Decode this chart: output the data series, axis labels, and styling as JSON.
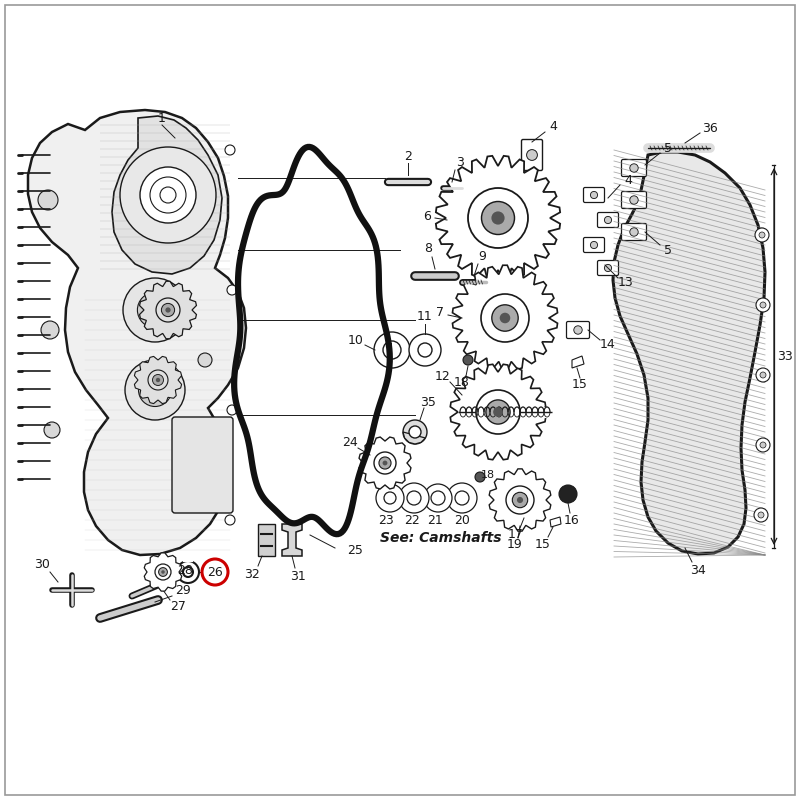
{
  "bg_color": "#ffffff",
  "highlight_color": "#cc0000",
  "line_color": "#1a1a1a",
  "text_color": "#1a1a1a",
  "note_text": "See: Camshafts",
  "figsize": [
    8.0,
    8.0
  ],
  "dpi": 100
}
